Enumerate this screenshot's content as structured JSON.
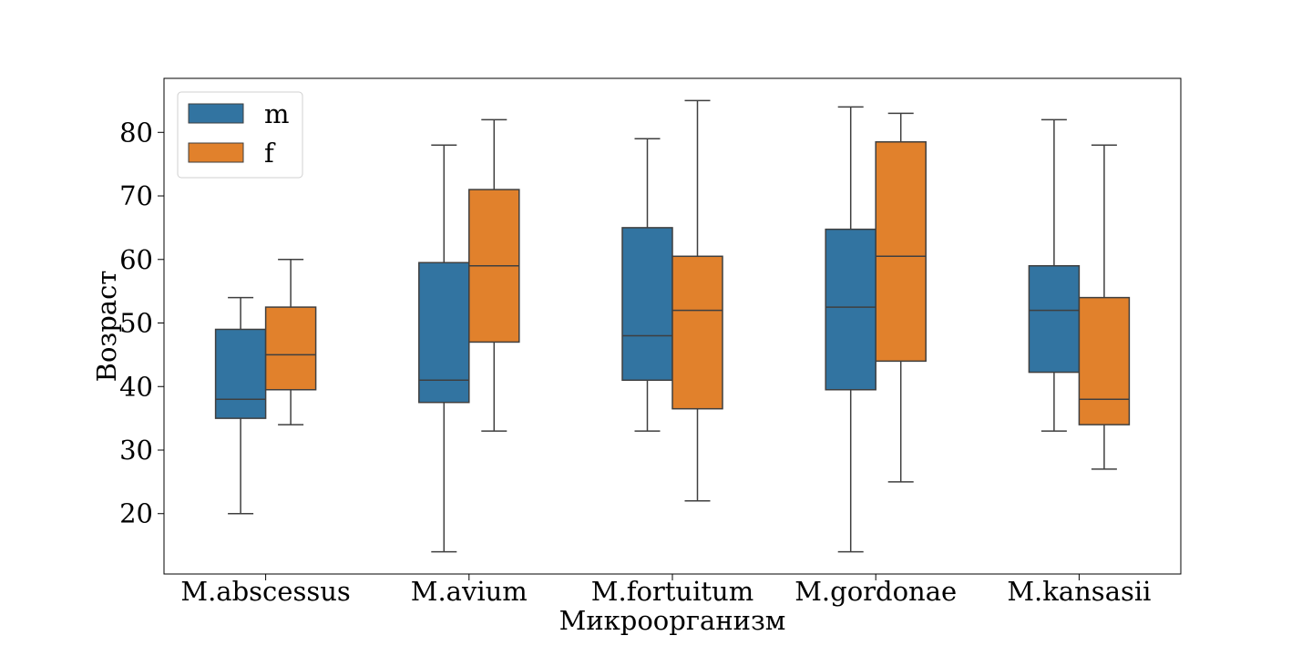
{
  "chart_data": {
    "type": "boxplot",
    "xlabel": "Микроорганизм",
    "ylabel": "Возраст",
    "ylim": [
      10.5,
      88.5
    ],
    "yticks": [
      20,
      30,
      40,
      50,
      60,
      70,
      80
    ],
    "categories": [
      "M.abscessus",
      "M.avium",
      "M.fortuitum",
      "M.gordonae",
      "M.kansasii"
    ],
    "legend_position": "top-left",
    "grid": false,
    "series": [
      {
        "name": "m",
        "color": "#3274a1",
        "boxes": [
          {
            "whisker_low": 20,
            "q1": 35,
            "median": 38,
            "q3": 49,
            "whisker_high": 54
          },
          {
            "whisker_low": 14,
            "q1": 37.5,
            "median": 41,
            "q3": 59.5,
            "whisker_high": 78
          },
          {
            "whisker_low": 33,
            "q1": 41,
            "median": 48,
            "q3": 65,
            "whisker_high": 79
          },
          {
            "whisker_low": 14,
            "q1": 39.5,
            "median": 52.5,
            "q3": 64.75,
            "whisker_high": 84
          },
          {
            "whisker_low": 33,
            "q1": 42.25,
            "median": 52,
            "q3": 59,
            "whisker_high": 82
          }
        ]
      },
      {
        "name": "f",
        "color": "#e1812c",
        "boxes": [
          {
            "whisker_low": 34,
            "q1": 39.5,
            "median": 45,
            "q3": 52.5,
            "whisker_high": 60
          },
          {
            "whisker_low": 33,
            "q1": 47,
            "median": 59,
            "q3": 71,
            "whisker_high": 82
          },
          {
            "whisker_low": 22,
            "q1": 36.5,
            "median": 52,
            "q3": 60.5,
            "whisker_high": 85
          },
          {
            "whisker_low": 25,
            "q1": 44,
            "median": 60.5,
            "q3": 78.5,
            "whisker_high": 83
          },
          {
            "whisker_low": 27,
            "q1": 34,
            "median": 38,
            "q3": 54,
            "whisker_high": 78
          }
        ]
      }
    ]
  }
}
